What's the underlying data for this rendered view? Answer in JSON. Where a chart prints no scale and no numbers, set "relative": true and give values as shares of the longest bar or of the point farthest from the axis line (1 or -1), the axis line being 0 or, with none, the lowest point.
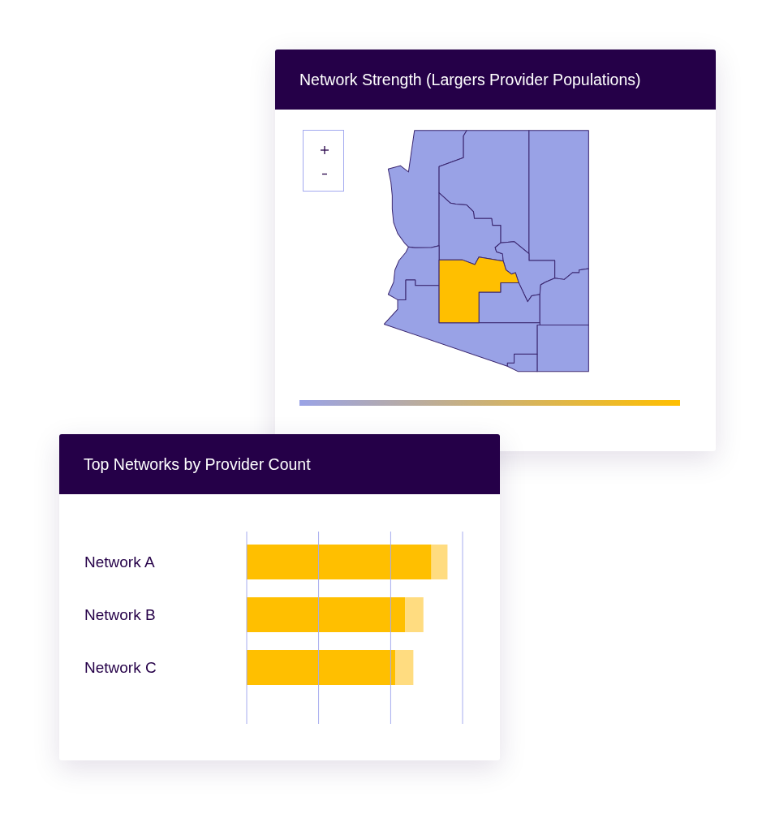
{
  "chart_data": [
    {
      "type": "other",
      "title": "Network Strength (Largers Provider Populations)"
    },
    {
      "type": "bar",
      "title": "Top Networks by Provider Count",
      "orientation": "horizontal",
      "stacked": true,
      "relative": true,
      "categories": [
        "Network A",
        "Network B",
        "Network C"
      ],
      "series": [
        {
          "color": "#ffbf00",
          "values": [
            0.92,
            0.79,
            0.74
          ]
        },
        {
          "color": "#ffdc80",
          "values": [
            0.08,
            0.09,
            0.09
          ]
        }
      ],
      "ref_lines": [
        {
          "axis": "x",
          "value": 0.358,
          "color": "#a6acef"
        },
        {
          "axis": "x",
          "value": 0.717,
          "color": "#a6acef"
        },
        {
          "axis": "x",
          "value": 1.075,
          "color": "#a6acef"
        }
      ],
      "tick_labels": "y"
    }
  ]
}
